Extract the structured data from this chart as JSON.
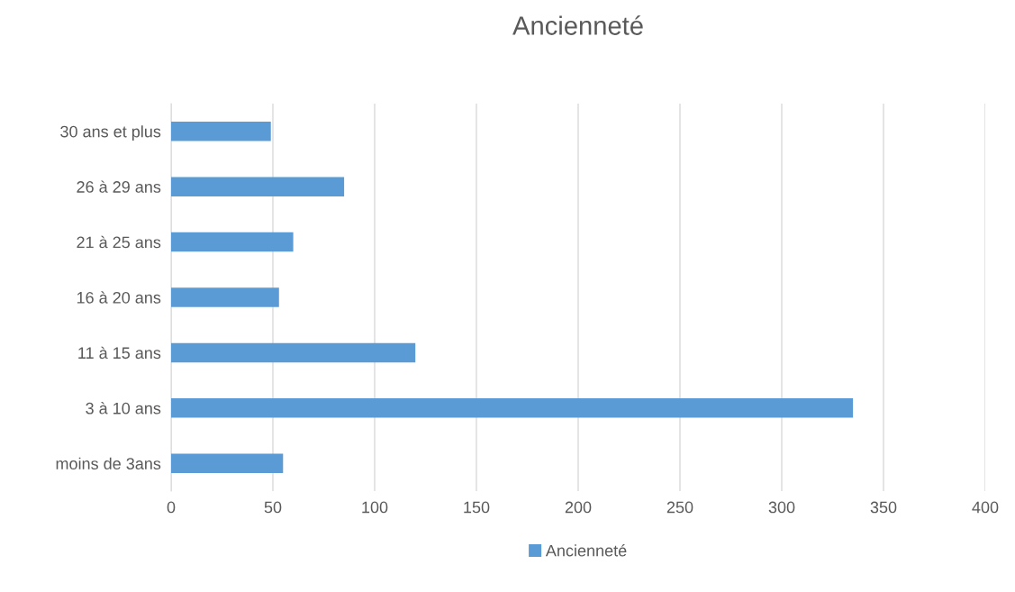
{
  "chart_data": {
    "type": "bar",
    "orientation": "horizontal",
    "title": "Ancienneté",
    "categories": [
      "30 ans et plus",
      "26 à 29 ans",
      "21 à 25 ans",
      "16 à 20 ans",
      "11 à 15 ans",
      "3 à 10 ans",
      "moins de 3ans"
    ],
    "series": [
      {
        "name": "Ancienneté",
        "color": "#5b9bd5",
        "values": [
          49,
          85,
          60,
          53,
          120,
          335,
          55
        ]
      }
    ],
    "xlim": [
      0,
      400
    ],
    "xticks": [
      0,
      50,
      100,
      150,
      200,
      250,
      300,
      350,
      400
    ],
    "grid": "x",
    "legend": "bottom"
  }
}
